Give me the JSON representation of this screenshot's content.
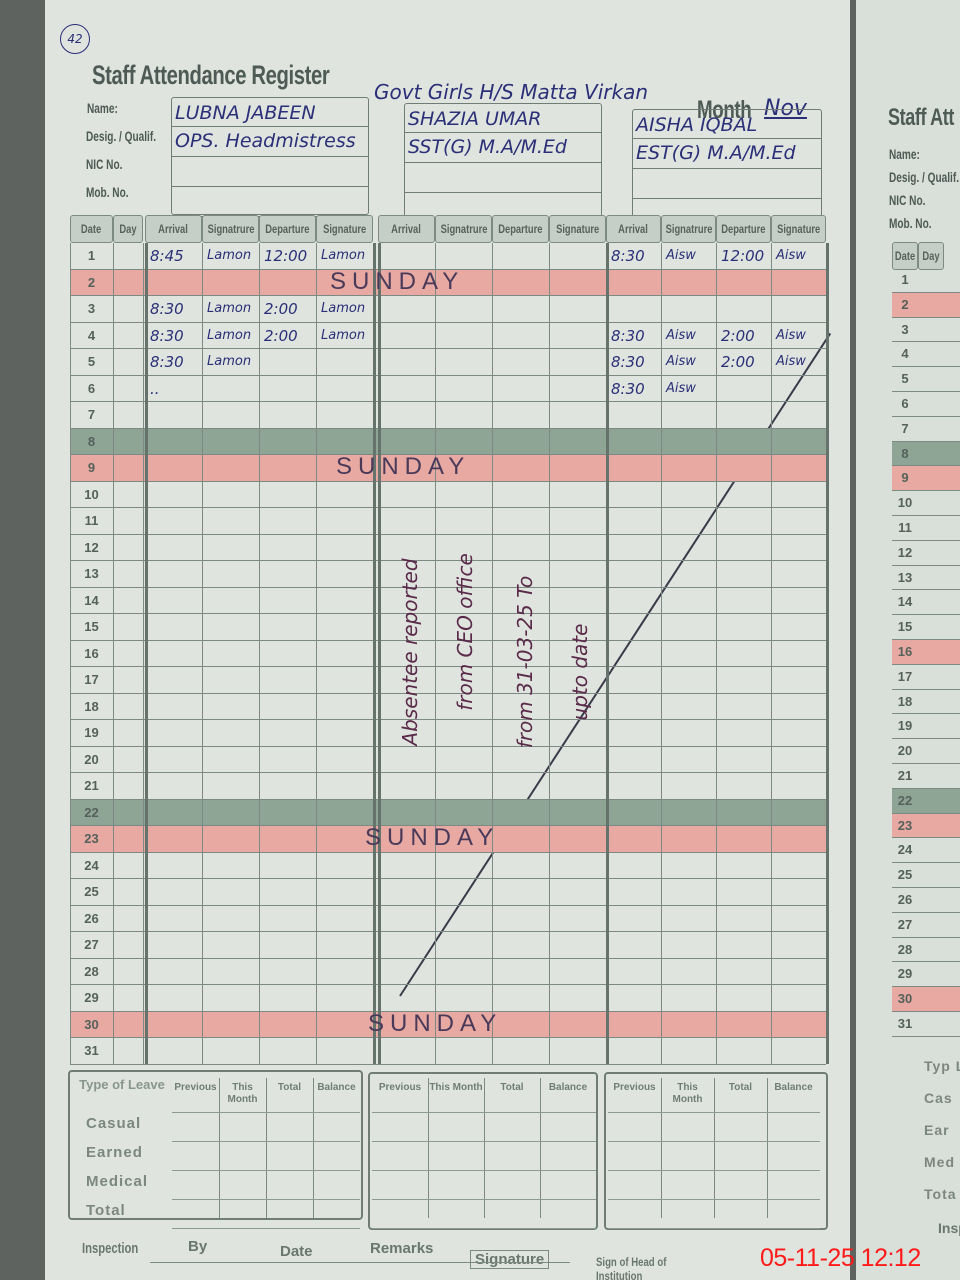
{
  "register": {
    "title": "Staff Attendance Register",
    "page_number": "42",
    "school": "Govt Girls H/S Matta Virkan",
    "month_label": "Month",
    "month": "Nov"
  },
  "labels": {
    "name": "Name:",
    "desig": "Desig. / Qualif.",
    "nic": "NIC No.",
    "mob": "Mob. No."
  },
  "columns": {
    "date": "Date",
    "day": "Day",
    "per_staff": [
      "Arrival",
      "Signatrure",
      "Departure",
      "Signature"
    ]
  },
  "staff": [
    {
      "name": "LUBNA JABEEN",
      "designation": "OPS. Headmistress",
      "nic": "",
      "mob": "",
      "entries": [
        {
          "date": 1,
          "arrival": "8:45",
          "sign_in": "Lamon",
          "departure": "12:00",
          "sign_out": "Lamon"
        },
        {
          "date": 3,
          "arrival": "8:30",
          "sign_in": "Lamon",
          "departure": "2:00",
          "sign_out": "Lamon"
        },
        {
          "date": 4,
          "arrival": "8:30",
          "sign_in": "Lamon",
          "departure": "2:00",
          "sign_out": "Lamon"
        },
        {
          "date": 5,
          "arrival": "8:30",
          "sign_in": "Lamon",
          "departure": "",
          "sign_out": ""
        },
        {
          "date": 6,
          "arrival": "..",
          "sign_in": "",
          "departure": "",
          "sign_out": ""
        }
      ]
    },
    {
      "name": "SHAZIA UMAR",
      "designation": "SST(G) M.A/M.Ed",
      "nic": "",
      "mob": "",
      "note": "Absentee reported from CEO office from 31-03-25 To upto date",
      "note_lines": [
        "Absentee reported",
        "from CEO office",
        "from 31-03-25 To",
        "upto date"
      ],
      "entries": []
    },
    {
      "name": "AISHA IQBAL",
      "designation": "EST(G) M.A/M.Ed",
      "nic": "",
      "mob": "",
      "entries": [
        {
          "date": 1,
          "arrival": "8:30",
          "sign_in": "Aisw",
          "departure": "12:00",
          "sign_out": "Aisw"
        },
        {
          "date": 4,
          "arrival": "8:30",
          "sign_in": "Aisw",
          "departure": "2:00",
          "sign_out": "Aisw"
        },
        {
          "date": 5,
          "arrival": "8:30",
          "sign_in": "Aisw",
          "departure": "2:00",
          "sign_out": "Aisw"
        },
        {
          "date": 6,
          "arrival": "8:30",
          "sign_in": "Aisw",
          "departure": "",
          "sign_out": ""
        }
      ]
    }
  ],
  "days_in_month": 31,
  "holidays": {
    "sunday_label": "SUNDAY",
    "sunday_rows": [
      2,
      9,
      23,
      30
    ],
    "red_rows": [
      2,
      9,
      23,
      30
    ],
    "green_rows": [
      8,
      22
    ]
  },
  "colors": {
    "red_shade": "#e7a9a2",
    "green_shade": "#8ea596",
    "ink": "#2b2f78",
    "stamp": "#ff1a1a"
  },
  "leave": {
    "type_header": "Type of Leave",
    "types": [
      "Casual",
      "Earned",
      "Medical",
      "Total"
    ],
    "columns": [
      "Previous",
      "This Month",
      "Total",
      "Balance"
    ]
  },
  "footer": {
    "inspection": "Inspection",
    "by": "By",
    "date": "Date",
    "remarks": "Remarks",
    "signature": "Signature",
    "head_sign": "Sign of Head of Institution"
  },
  "next_page": {
    "title": "Staff Att",
    "labels": [
      "Name:",
      "Desig. / Qualif.",
      "NIC No.",
      "Mob. No."
    ],
    "date": "Date",
    "day": "Day",
    "leave_types": [
      "Typ Lea",
      "Cas",
      "Ear",
      "Med",
      "Tota"
    ],
    "inspection": "Inspecti"
  },
  "timestamp": "05-11-25  12:12"
}
